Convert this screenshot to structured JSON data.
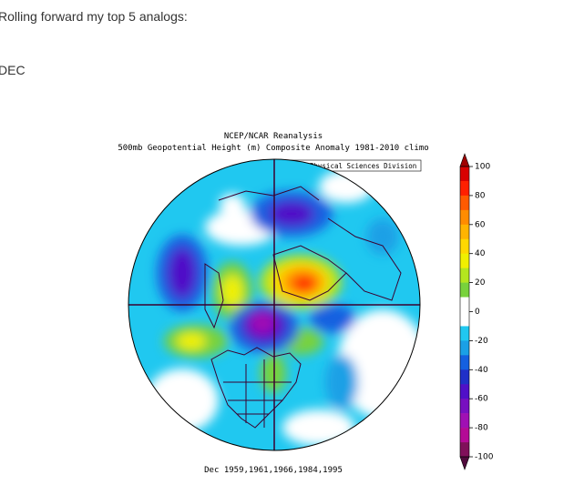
{
  "post": {
    "intro": "Rolling forward my top 5 analogs:",
    "month": "DEC"
  },
  "map": {
    "title_lines": [
      "NCEP/NCAR Reanalysis",
      "500mb Geopotential Height (m) Composite Anomaly 1981-2010 climo"
    ],
    "source": "NOAA/ESRL Physical Sciences Division",
    "caption": "Dec 1959,1961,1966,1984,1995",
    "colorbar": {
      "ticks": [
        100,
        80,
        60,
        40,
        20,
        0,
        -20,
        -40,
        -60,
        -80,
        -100
      ],
      "arrow_colors": [
        "#a00000",
        "#500a3c"
      ],
      "colors": [
        "#d80000",
        "#ff2000",
        "#ff5a00",
        "#ff8c00",
        "#ffb400",
        "#ffd800",
        "#f0f000",
        "#b4e61e",
        "#78d23c",
        "#ffffff",
        "#ffffff",
        "#20c8f0",
        "#1aa0e6",
        "#1460e0",
        "#2030c8",
        "#5010c8",
        "#7810c0",
        "#a010b4",
        "#b40a96",
        "#80105a"
      ]
    }
  }
}
